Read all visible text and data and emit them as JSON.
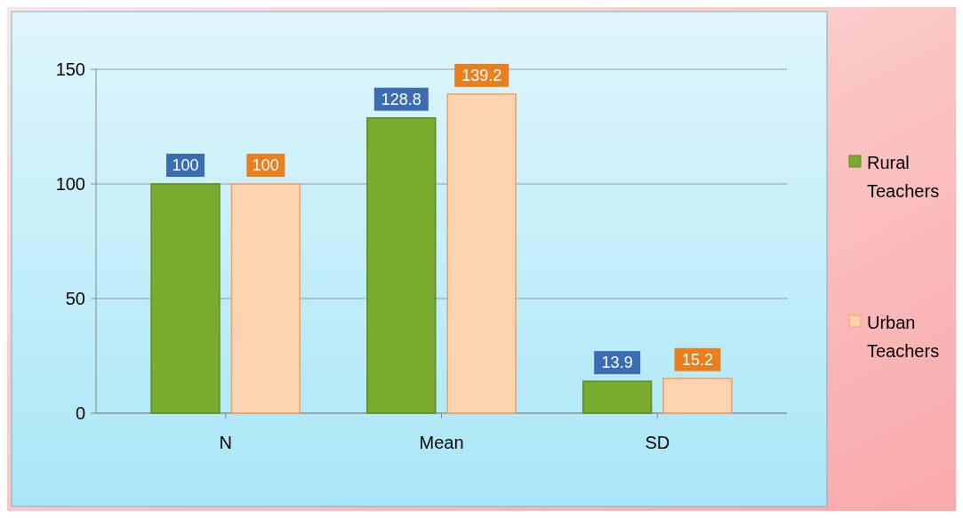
{
  "chart_data": {
    "type": "bar",
    "categories": [
      "N",
      "Mean",
      "SD"
    ],
    "series": [
      {
        "name": "Rural Teachers",
        "color": "#7aab2e",
        "values": [
          100,
          128.8,
          13.9
        ]
      },
      {
        "name": "Urban Teachers",
        "color": "#fbd3b0",
        "values": [
          100,
          139.2,
          15.2
        ]
      }
    ],
    "ylim": [
      0,
      150
    ],
    "yticks": [
      0,
      50,
      100,
      150
    ],
    "grid": "y",
    "legend": "right",
    "data_labels": true
  }
}
